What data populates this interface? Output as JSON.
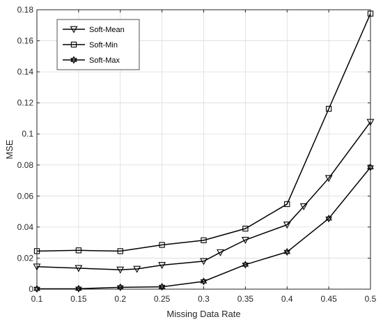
{
  "chart_data": {
    "type": "line",
    "xlabel": "Missing Data Rate",
    "ylabel": "MSE",
    "xlim": [
      0.1,
      0.5
    ],
    "ylim": [
      0,
      0.18
    ],
    "xticks": [
      "0.1",
      "0.15",
      "0.2",
      "0.25",
      "0.3",
      "0.35",
      "0.4",
      "0.45",
      "0.5"
    ],
    "yticks": [
      "0",
      "0.02",
      "0.04",
      "0.06",
      "0.08",
      "0.1",
      "0.12",
      "0.14",
      "0.16",
      "0.18"
    ],
    "grid": true,
    "legend_position": "top-left",
    "series": [
      {
        "name": "Soft-Mean",
        "marker": "triangle-down",
        "x": [
          0.1,
          0.15,
          0.2,
          0.22,
          0.25,
          0.3,
          0.32,
          0.35,
          0.4,
          0.42,
          0.45,
          0.5
        ],
        "values": [
          0.0145,
          0.0135,
          0.0125,
          0.013,
          0.0155,
          0.018,
          0.0237,
          0.0317,
          0.0415,
          0.0533,
          0.0715,
          0.1077
        ]
      },
      {
        "name": "Soft-Min",
        "marker": "square",
        "x": [
          0.1,
          0.15,
          0.2,
          0.25,
          0.3,
          0.35,
          0.4,
          0.45,
          0.5
        ],
        "values": [
          0.0245,
          0.025,
          0.0245,
          0.0285,
          0.0315,
          0.039,
          0.0548,
          0.1162,
          0.1775
        ]
      },
      {
        "name": "Soft-Max",
        "marker": "star",
        "x": [
          0.1,
          0.15,
          0.2,
          0.25,
          0.3,
          0.35,
          0.4,
          0.45,
          0.5
        ],
        "values": [
          0.0002,
          0.0003,
          0.0012,
          0.0015,
          0.005,
          0.0158,
          0.024,
          0.0455,
          0.0785
        ]
      }
    ]
  }
}
